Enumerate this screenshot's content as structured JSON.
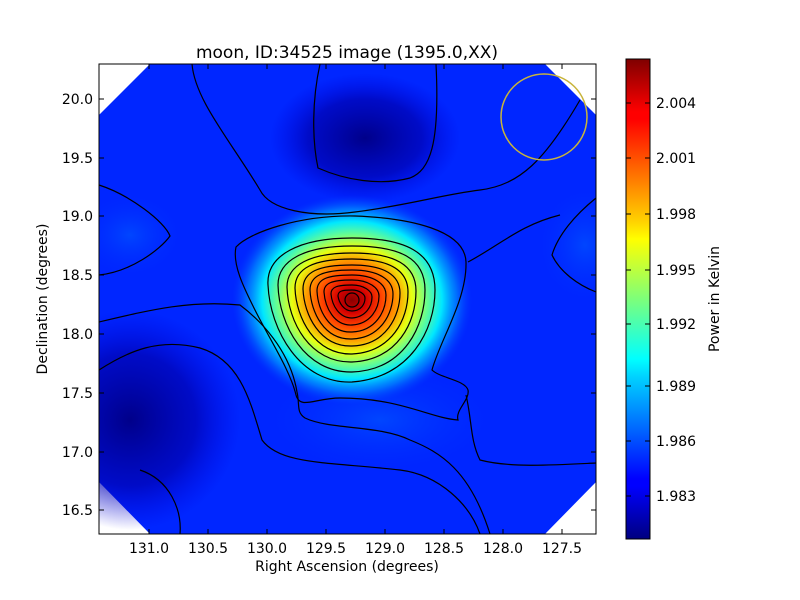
{
  "chart_data": {
    "type": "heatmap",
    "title": "moon, ID:34525 image (1395.0,XX)",
    "xlabel": "Right Ascension (degrees)",
    "ylabel": "Declination (degrees)",
    "xlim": [
      131.4,
      127.2
    ],
    "ylim": [
      16.3,
      20.3
    ],
    "x_ticks": [
      "131.0",
      "130.5",
      "130.0",
      "129.5",
      "129.0",
      "128.5",
      "128.0",
      "127.5"
    ],
    "x_tick_values": [
      131.0,
      130.5,
      130.0,
      129.5,
      129.0,
      128.5,
      128.0,
      127.5
    ],
    "y_ticks": [
      "16.5",
      "17.0",
      "17.5",
      "18.0",
      "18.5",
      "19.0",
      "19.5",
      "20.0"
    ],
    "y_tick_values": [
      16.5,
      17.0,
      17.5,
      18.0,
      18.5,
      19.0,
      19.5,
      20.0
    ],
    "colorbar": {
      "label": "Power in Kelvin",
      "range": [
        1.9812,
        2.0072
      ],
      "ticks": [
        "1.983",
        "1.986",
        "1.989",
        "1.992",
        "1.995",
        "1.998",
        "2.001",
        "2.004"
      ],
      "tick_values": [
        1.983,
        1.986,
        1.989,
        1.992,
        1.995,
        1.998,
        2.001,
        2.004
      ],
      "colormap": "jet"
    },
    "peak": {
      "ra": 129.25,
      "dec": 18.28,
      "value": 2.0065
    },
    "background_level": 1.985,
    "beam_circle": {
      "ra": 127.65,
      "dec": 19.85,
      "radius_deg": 0.36,
      "color": "#c8b43c"
    },
    "grid": false
  }
}
